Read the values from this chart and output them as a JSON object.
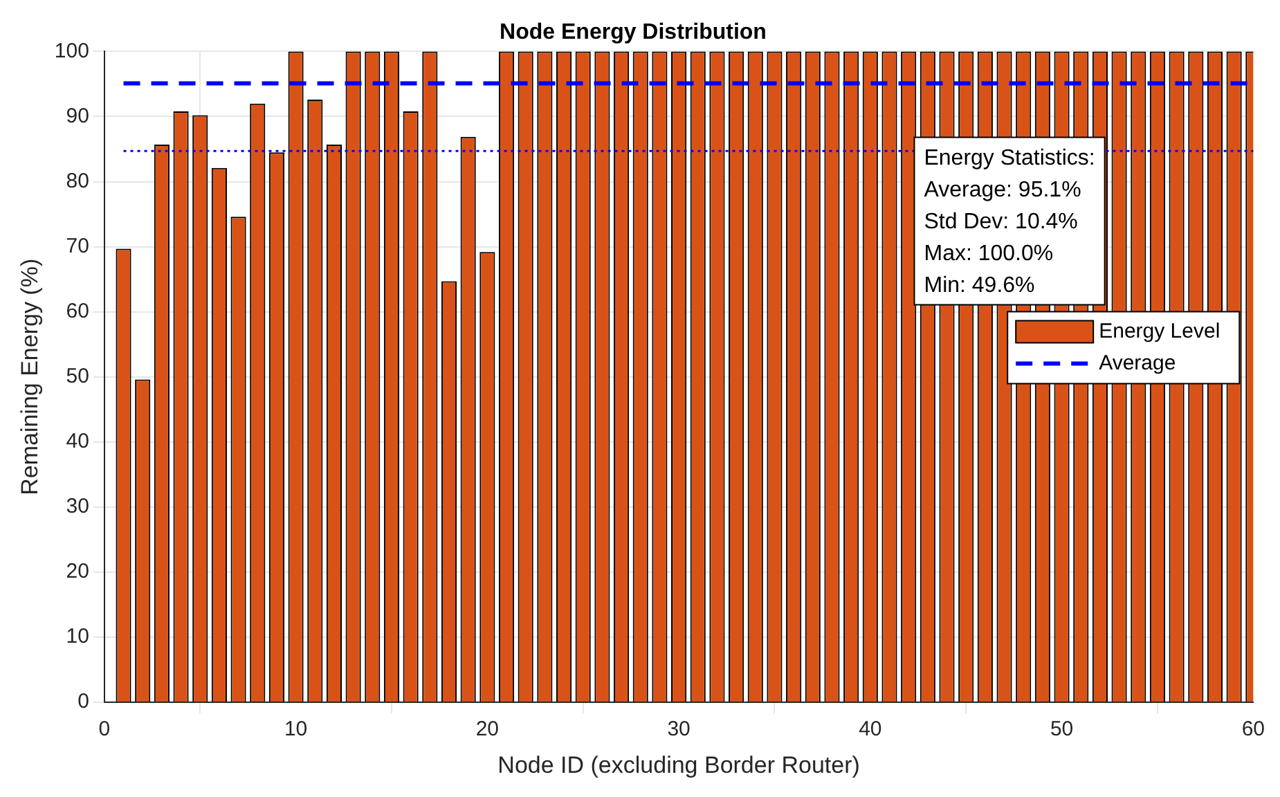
{
  "chart_data": {
    "type": "bar",
    "title": "Node Energy Distribution",
    "xlabel": "Node ID (excluding Border Router)",
    "ylabel": "Remaining Energy (%)",
    "x": [
      1,
      2,
      3,
      4,
      5,
      6,
      7,
      8,
      9,
      10,
      11,
      12,
      13,
      14,
      15,
      16,
      17,
      18,
      19,
      20,
      21,
      22,
      23,
      24,
      25,
      26,
      27,
      28,
      29,
      30,
      31,
      32,
      33,
      34,
      35,
      36,
      37,
      38,
      39,
      40,
      41,
      42,
      43,
      44,
      45,
      46,
      47,
      48,
      49,
      50,
      51,
      52,
      53,
      54,
      55,
      56,
      57,
      58,
      59,
      60
    ],
    "series": [
      {
        "name": "Energy Level",
        "color": "#d95319",
        "values": [
          69.7,
          49.6,
          85.7,
          90.8,
          90.2,
          82.1,
          74.6,
          92,
          84.5,
          100,
          92.6,
          85.7,
          100,
          100,
          100,
          90.8,
          100,
          64.7,
          86.9,
          69.2,
          100,
          100,
          100,
          100,
          100,
          100,
          100,
          100,
          100,
          100,
          100,
          100,
          100,
          100,
          100,
          100,
          100,
          100,
          100,
          100,
          100,
          100,
          100,
          100,
          100,
          100,
          100,
          100,
          100,
          100,
          100,
          100,
          100,
          100,
          100,
          100,
          100,
          100,
          100,
          100
        ]
      },
      {
        "name": "Average",
        "type": "line",
        "color": "#0000ff",
        "line_style": "dashed",
        "marker": "none",
        "x": [
          1,
          60
        ],
        "values": [
          95.1,
          95.1
        ]
      }
    ],
    "ref_lines": [
      {
        "axis": "y",
        "value": 84.7,
        "color": "#0000ff",
        "line_style": "dotted"
      }
    ],
    "annotations": [
      "Energy Statistics:",
      "Average: 95.1%",
      "Std Dev: 10.4%",
      "Max: 100.0%",
      "Min: 49.6%"
    ],
    "xlim": [
      0,
      60
    ],
    "xticks": [
      0,
      10,
      20,
      30,
      40,
      50,
      60
    ],
    "ylim": [
      0,
      100
    ],
    "yticks": [
      0,
      10,
      20,
      30,
      40,
      50,
      60,
      70,
      80,
      90,
      100
    ],
    "grid": true,
    "legend": "right"
  }
}
